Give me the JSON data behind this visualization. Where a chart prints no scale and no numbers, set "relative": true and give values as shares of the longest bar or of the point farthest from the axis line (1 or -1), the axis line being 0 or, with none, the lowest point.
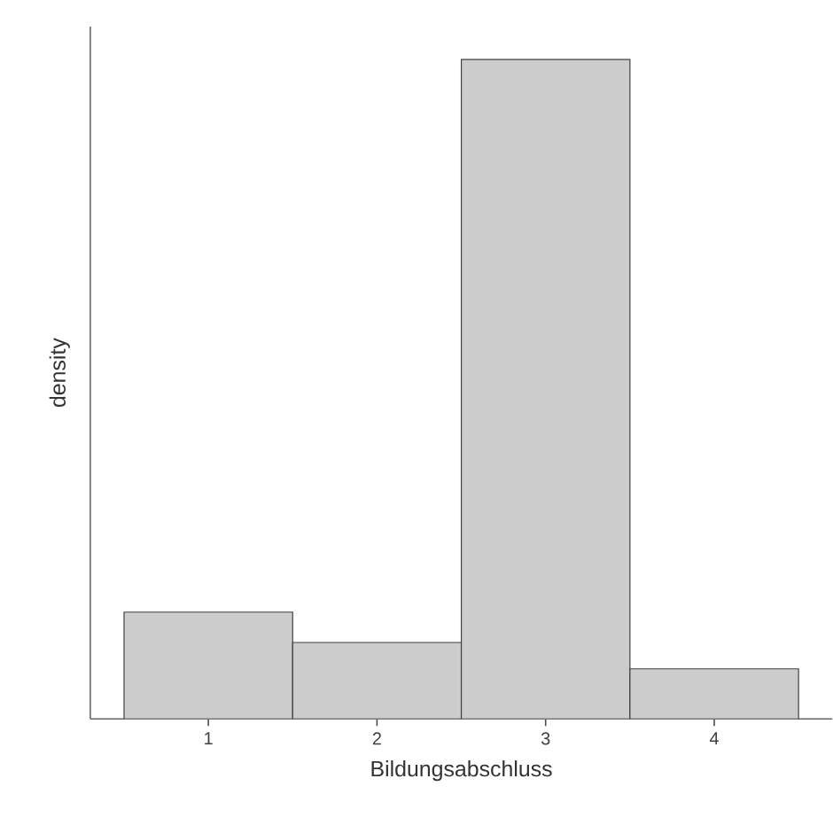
{
  "chart_data": {
    "type": "bar",
    "xlabel": "Bildungsabschluss",
    "ylabel": "density",
    "relative": true,
    "categories": [
      "1",
      "2",
      "3",
      "4"
    ],
    "values": [
      0.162,
      0.116,
      1,
      0.076
    ],
    "color": "#cccccc"
  }
}
